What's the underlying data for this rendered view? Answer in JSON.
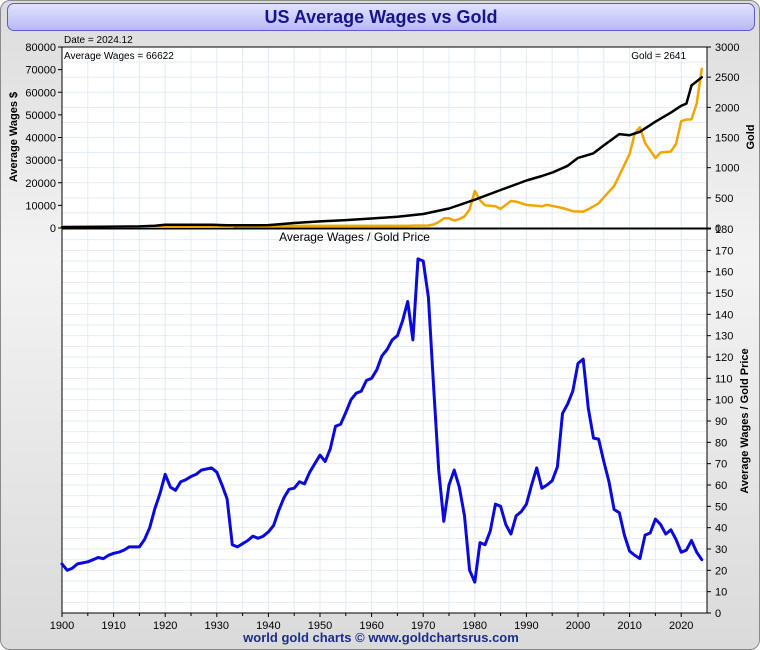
{
  "header": {
    "title": "US Average Wages vs Gold"
  },
  "footer": {
    "credit": "world gold charts © www.goldchartsrus.com"
  },
  "chart_data": [
    {
      "type": "line",
      "annotations": {
        "date": "Date = 2024.12",
        "wages": "Average Wages = 66622",
        "gold": "Gold = 2641"
      },
      "ylabel_left": "Average Wages $",
      "ylabel_right": "Gold",
      "ylim_left": [
        0,
        80000
      ],
      "ylim_right": [
        0,
        3000
      ],
      "yticks_left": [
        "0",
        "10000",
        "20000",
        "30000",
        "40000",
        "50000",
        "60000",
        "70000",
        "80000"
      ],
      "yticks_right": [
        "0",
        "500",
        "1000",
        "1500",
        "2000",
        "2500",
        "3000"
      ],
      "grid": true,
      "series": [
        {
          "name": "Average Wages",
          "axis": "left",
          "color": "#000000",
          "x": [
            1900,
            1905,
            1910,
            1915,
            1918,
            1920,
            1925,
            1929,
            1932,
            1935,
            1940,
            1943,
            1945,
            1950,
            1955,
            1960,
            1965,
            1970,
            1975,
            1980,
            1985,
            1990,
            1993,
            1995,
            1998,
            2000,
            2003,
            2005,
            2008,
            2010,
            2012,
            2015,
            2018,
            2020,
            2021,
            2022,
            2024
          ],
          "y": [
            400,
            500,
            600,
            700,
            1000,
            1400,
            1400,
            1450,
            1250,
            1200,
            1300,
            1800,
            2200,
            2900,
            3500,
            4200,
            5000,
            6200,
            8600,
            12500,
            16800,
            21000,
            23000,
            24500,
            27500,
            31000,
            33000,
            36500,
            41500,
            41000,
            42500,
            47000,
            51000,
            54000,
            55000,
            63000,
            66622
          ]
        },
        {
          "name": "Gold",
          "axis": "right",
          "color": "#f0a500",
          "x": [
            1900,
            1933,
            1934,
            1967,
            1968,
            1971,
            1972,
            1973,
            1974,
            1975,
            1976,
            1977,
            1978,
            1979,
            1980,
            1981,
            1982,
            1984,
            1985,
            1987,
            1988,
            1990,
            1993,
            1994,
            1997,
            1999,
            2001,
            2002,
            2004,
            2006,
            2007,
            2008,
            2010,
            2011,
            2012,
            2013,
            2015,
            2016,
            2018,
            2019,
            2020,
            2021,
            2022,
            2023,
            2024
          ],
          "y": [
            20.67,
            20.67,
            35,
            35,
            39,
            41,
            58,
            97,
            159,
            161,
            125,
            148,
            193,
            307,
            615,
            460,
            376,
            361,
            317,
            447,
            437,
            383,
            360,
            384,
            331,
            279,
            271,
            310,
            410,
            604,
            695,
            872,
            1225,
            1570,
            1669,
            1411,
            1160,
            1251,
            1268,
            1393,
            1770,
            1799,
            1800,
            2062,
            2641
          ]
        }
      ]
    },
    {
      "type": "line",
      "title": "Average Wages / Gold Price",
      "ylabel_right": "Average Wages / Gold Price",
      "xlim": [
        1900,
        2025
      ],
      "ylim": [
        0,
        180
      ],
      "xticks": [
        "1900",
        "1910",
        "1920",
        "1930",
        "1940",
        "1950",
        "1960",
        "1970",
        "1980",
        "1990",
        "2000",
        "2010",
        "2020"
      ],
      "yticks": [
        "0",
        "10",
        "20",
        "30",
        "40",
        "50",
        "60",
        "70",
        "80",
        "90",
        "100",
        "110",
        "120",
        "130",
        "140",
        "150",
        "160",
        "170",
        "180"
      ],
      "grid": true,
      "series": [
        {
          "name": "Average Wages / Gold Price",
          "color": "#0a0adc",
          "x": [
            1900,
            1901,
            1902,
            1903,
            1904,
            1905,
            1906,
            1907,
            1908,
            1909,
            1910,
            1911,
            1912,
            1913,
            1914,
            1915,
            1916,
            1917,
            1918,
            1919,
            1920,
            1921,
            1922,
            1923,
            1924,
            1925,
            1926,
            1927,
            1928,
            1929,
            1930,
            1931,
            1932,
            1933,
            1934,
            1935,
            1936,
            1937,
            1938,
            1939,
            1940,
            1941,
            1942,
            1943,
            1944,
            1945,
            1946,
            1947,
            1948,
            1949,
            1950,
            1951,
            1952,
            1953,
            1954,
            1955,
            1956,
            1957,
            1958,
            1959,
            1960,
            1961,
            1962,
            1963,
            1964,
            1965,
            1966,
            1967,
            1968,
            1969,
            1970,
            1971,
            1972,
            1973,
            1974,
            1975,
            1976,
            1977,
            1978,
            1979,
            1980,
            1981,
            1982,
            1983,
            1984,
            1985,
            1986,
            1987,
            1988,
            1989,
            1990,
            1991,
            1992,
            1993,
            1994,
            1995,
            1996,
            1997,
            1998,
            1999,
            2000,
            2001,
            2002,
            2003,
            2004,
            2005,
            2006,
            2007,
            2008,
            2009,
            2010,
            2011,
            2012,
            2013,
            2014,
            2015,
            2016,
            2017,
            2018,
            2019,
            2020,
            2021,
            2022,
            2023,
            2024
          ],
          "y": [
            23,
            20,
            21,
            23,
            23.5,
            24,
            25,
            26,
            25.5,
            27,
            28,
            28.5,
            29.5,
            31,
            31,
            31,
            34.5,
            40,
            49,
            56,
            65,
            59,
            57.5,
            61.5,
            62.5,
            64,
            65,
            67,
            67.5,
            68,
            66,
            60,
            53.5,
            32,
            31,
            32.5,
            34,
            36,
            35,
            36,
            38,
            41,
            48,
            54,
            58,
            58.5,
            61.5,
            60.5,
            66,
            70,
            74,
            71,
            77,
            87.5,
            88.5,
            94,
            100,
            103,
            104,
            109,
            110,
            114,
            120.5,
            123.5,
            128,
            130,
            137,
            146,
            128,
            166,
            165,
            148,
            107,
            67,
            43,
            60,
            67,
            59,
            45.5,
            20,
            14.5,
            33,
            32,
            38.5,
            51,
            50,
            41.5,
            37,
            45.5,
            47.5,
            51,
            60,
            68,
            58.5,
            60,
            62,
            68.5,
            93.5,
            98,
            104,
            117,
            119,
            96,
            82,
            81.5,
            71,
            61.5,
            48.5,
            47,
            36.5,
            29,
            27,
            25.5,
            36.5,
            37.5,
            44,
            41.5,
            37,
            39,
            34.5,
            28.5,
            29.5,
            34,
            28.5,
            25
          ]
        }
      ]
    }
  ]
}
